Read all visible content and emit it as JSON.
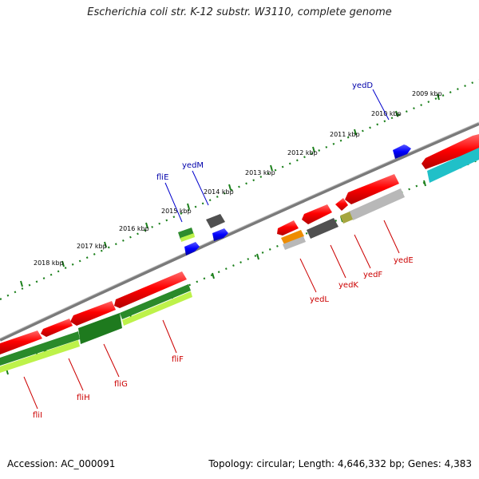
{
  "title": "Escherichia coli str. K-12 substr. W3110, complete genome",
  "footer": {
    "accession": "Accession: AC_000091",
    "summary": "Topology: circular; Length: 4,646,332 bp; Genes: 4,383"
  },
  "scale_labels": [
    "2009 kbp",
    "2010 kbp",
    "2011 kbp",
    "2012 kbp",
    "2013 kbp",
    "2014 kbp",
    "2015 kbp",
    "2016 kbp",
    "2017 kbp",
    "2018 kbp"
  ],
  "genes_forward": [
    "yedD",
    "yedM",
    "fliE"
  ],
  "genes_reverse": [
    "yedE",
    "yedF",
    "yedK",
    "yedL",
    "fliF",
    "fliG",
    "fliH",
    "fliI"
  ],
  "colors": {
    "forward_gene": "#0000ff",
    "reverse_gene": "#ff0000",
    "label_forward": "#0000aa",
    "label_reverse": "#cc0000",
    "backbone": "#808080",
    "tick": "#1a7f1a"
  }
}
